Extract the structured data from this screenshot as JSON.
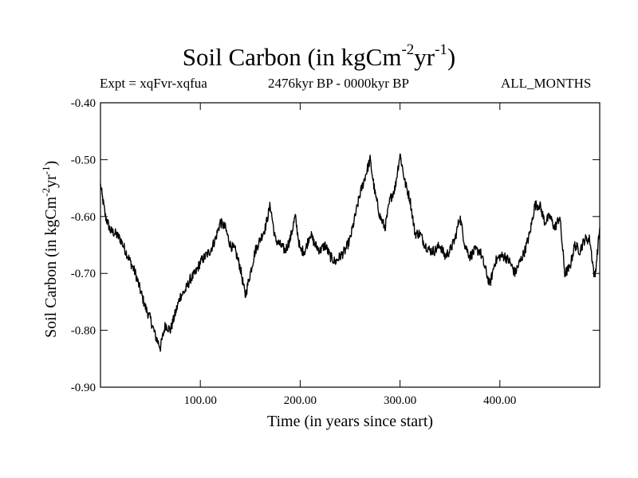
{
  "chart_data": {
    "type": "line",
    "title": {
      "text": "Soil Carbon (in kgCm",
      "sup1": "-2",
      "mid": "yr",
      "sup2": "-1",
      "end": ")"
    },
    "subtitle_left": "Expt = xqFvr-xqfua",
    "subtitle_center": "2476kyr BP - 0000kyr BP",
    "subtitle_right": "ALL_MONTHS",
    "xlabel": "Time (in years since start)",
    "ylabel": {
      "text": "Soil Carbon (in kgCm",
      "sup1": "-2",
      "mid": "yr",
      "sup2": "-1",
      "end": ")"
    },
    "xlim": [
      0,
      500
    ],
    "ylim": [
      -0.9,
      -0.4
    ],
    "xticks": [
      100,
      200,
      300,
      400
    ],
    "xtick_labels": [
      "100.00",
      "200.00",
      "300.00",
      "400.00"
    ],
    "yticks": [
      -0.4,
      -0.5,
      -0.6,
      -0.7,
      -0.8,
      -0.9
    ],
    "ytick_labels": [
      "-0.40",
      "-0.50",
      "-0.60",
      "-0.70",
      "-0.80",
      "-0.90"
    ],
    "grid": false,
    "series": [
      {
        "name": "Soil Carbon",
        "x": [
          0,
          5,
          10,
          15,
          20,
          25,
          30,
          35,
          40,
          45,
          50,
          55,
          60,
          65,
          70,
          75,
          80,
          85,
          90,
          95,
          100,
          105,
          110,
          115,
          120,
          125,
          130,
          135,
          140,
          145,
          150,
          155,
          160,
          165,
          170,
          175,
          180,
          185,
          190,
          195,
          200,
          205,
          210,
          215,
          220,
          225,
          230,
          235,
          240,
          245,
          250,
          255,
          260,
          265,
          270,
          275,
          280,
          285,
          290,
          295,
          300,
          305,
          310,
          315,
          320,
          325,
          330,
          335,
          340,
          345,
          350,
          355,
          360,
          365,
          370,
          375,
          380,
          385,
          390,
          395,
          400,
          405,
          410,
          415,
          420,
          425,
          430,
          435,
          440,
          445,
          450,
          455,
          460,
          465,
          470,
          475,
          480,
          485,
          490,
          495,
          500
        ],
        "y": [
          -0.545,
          -0.6,
          -0.625,
          -0.63,
          -0.64,
          -0.66,
          -0.68,
          -0.7,
          -0.73,
          -0.76,
          -0.78,
          -0.81,
          -0.83,
          -0.79,
          -0.8,
          -0.77,
          -0.74,
          -0.73,
          -0.71,
          -0.7,
          -0.68,
          -0.67,
          -0.66,
          -0.64,
          -0.61,
          -0.62,
          -0.65,
          -0.66,
          -0.69,
          -0.74,
          -0.7,
          -0.66,
          -0.64,
          -0.62,
          -0.58,
          -0.64,
          -0.65,
          -0.66,
          -0.64,
          -0.6,
          -0.66,
          -0.66,
          -0.63,
          -0.65,
          -0.66,
          -0.65,
          -0.67,
          -0.68,
          -0.67,
          -0.66,
          -0.64,
          -0.6,
          -0.56,
          -0.53,
          -0.5,
          -0.56,
          -0.6,
          -0.62,
          -0.57,
          -0.55,
          -0.49,
          -0.54,
          -0.57,
          -0.63,
          -0.63,
          -0.65,
          -0.66,
          -0.66,
          -0.65,
          -0.67,
          -0.66,
          -0.64,
          -0.6,
          -0.65,
          -0.67,
          -0.66,
          -0.66,
          -0.69,
          -0.72,
          -0.68,
          -0.67,
          -0.67,
          -0.68,
          -0.7,
          -0.68,
          -0.66,
          -0.63,
          -0.58,
          -0.58,
          -0.61,
          -0.6,
          -0.62,
          -0.6,
          -0.7,
          -0.69,
          -0.65,
          -0.66,
          -0.64,
          -0.64,
          -0.71,
          -0.62
        ]
      }
    ]
  }
}
